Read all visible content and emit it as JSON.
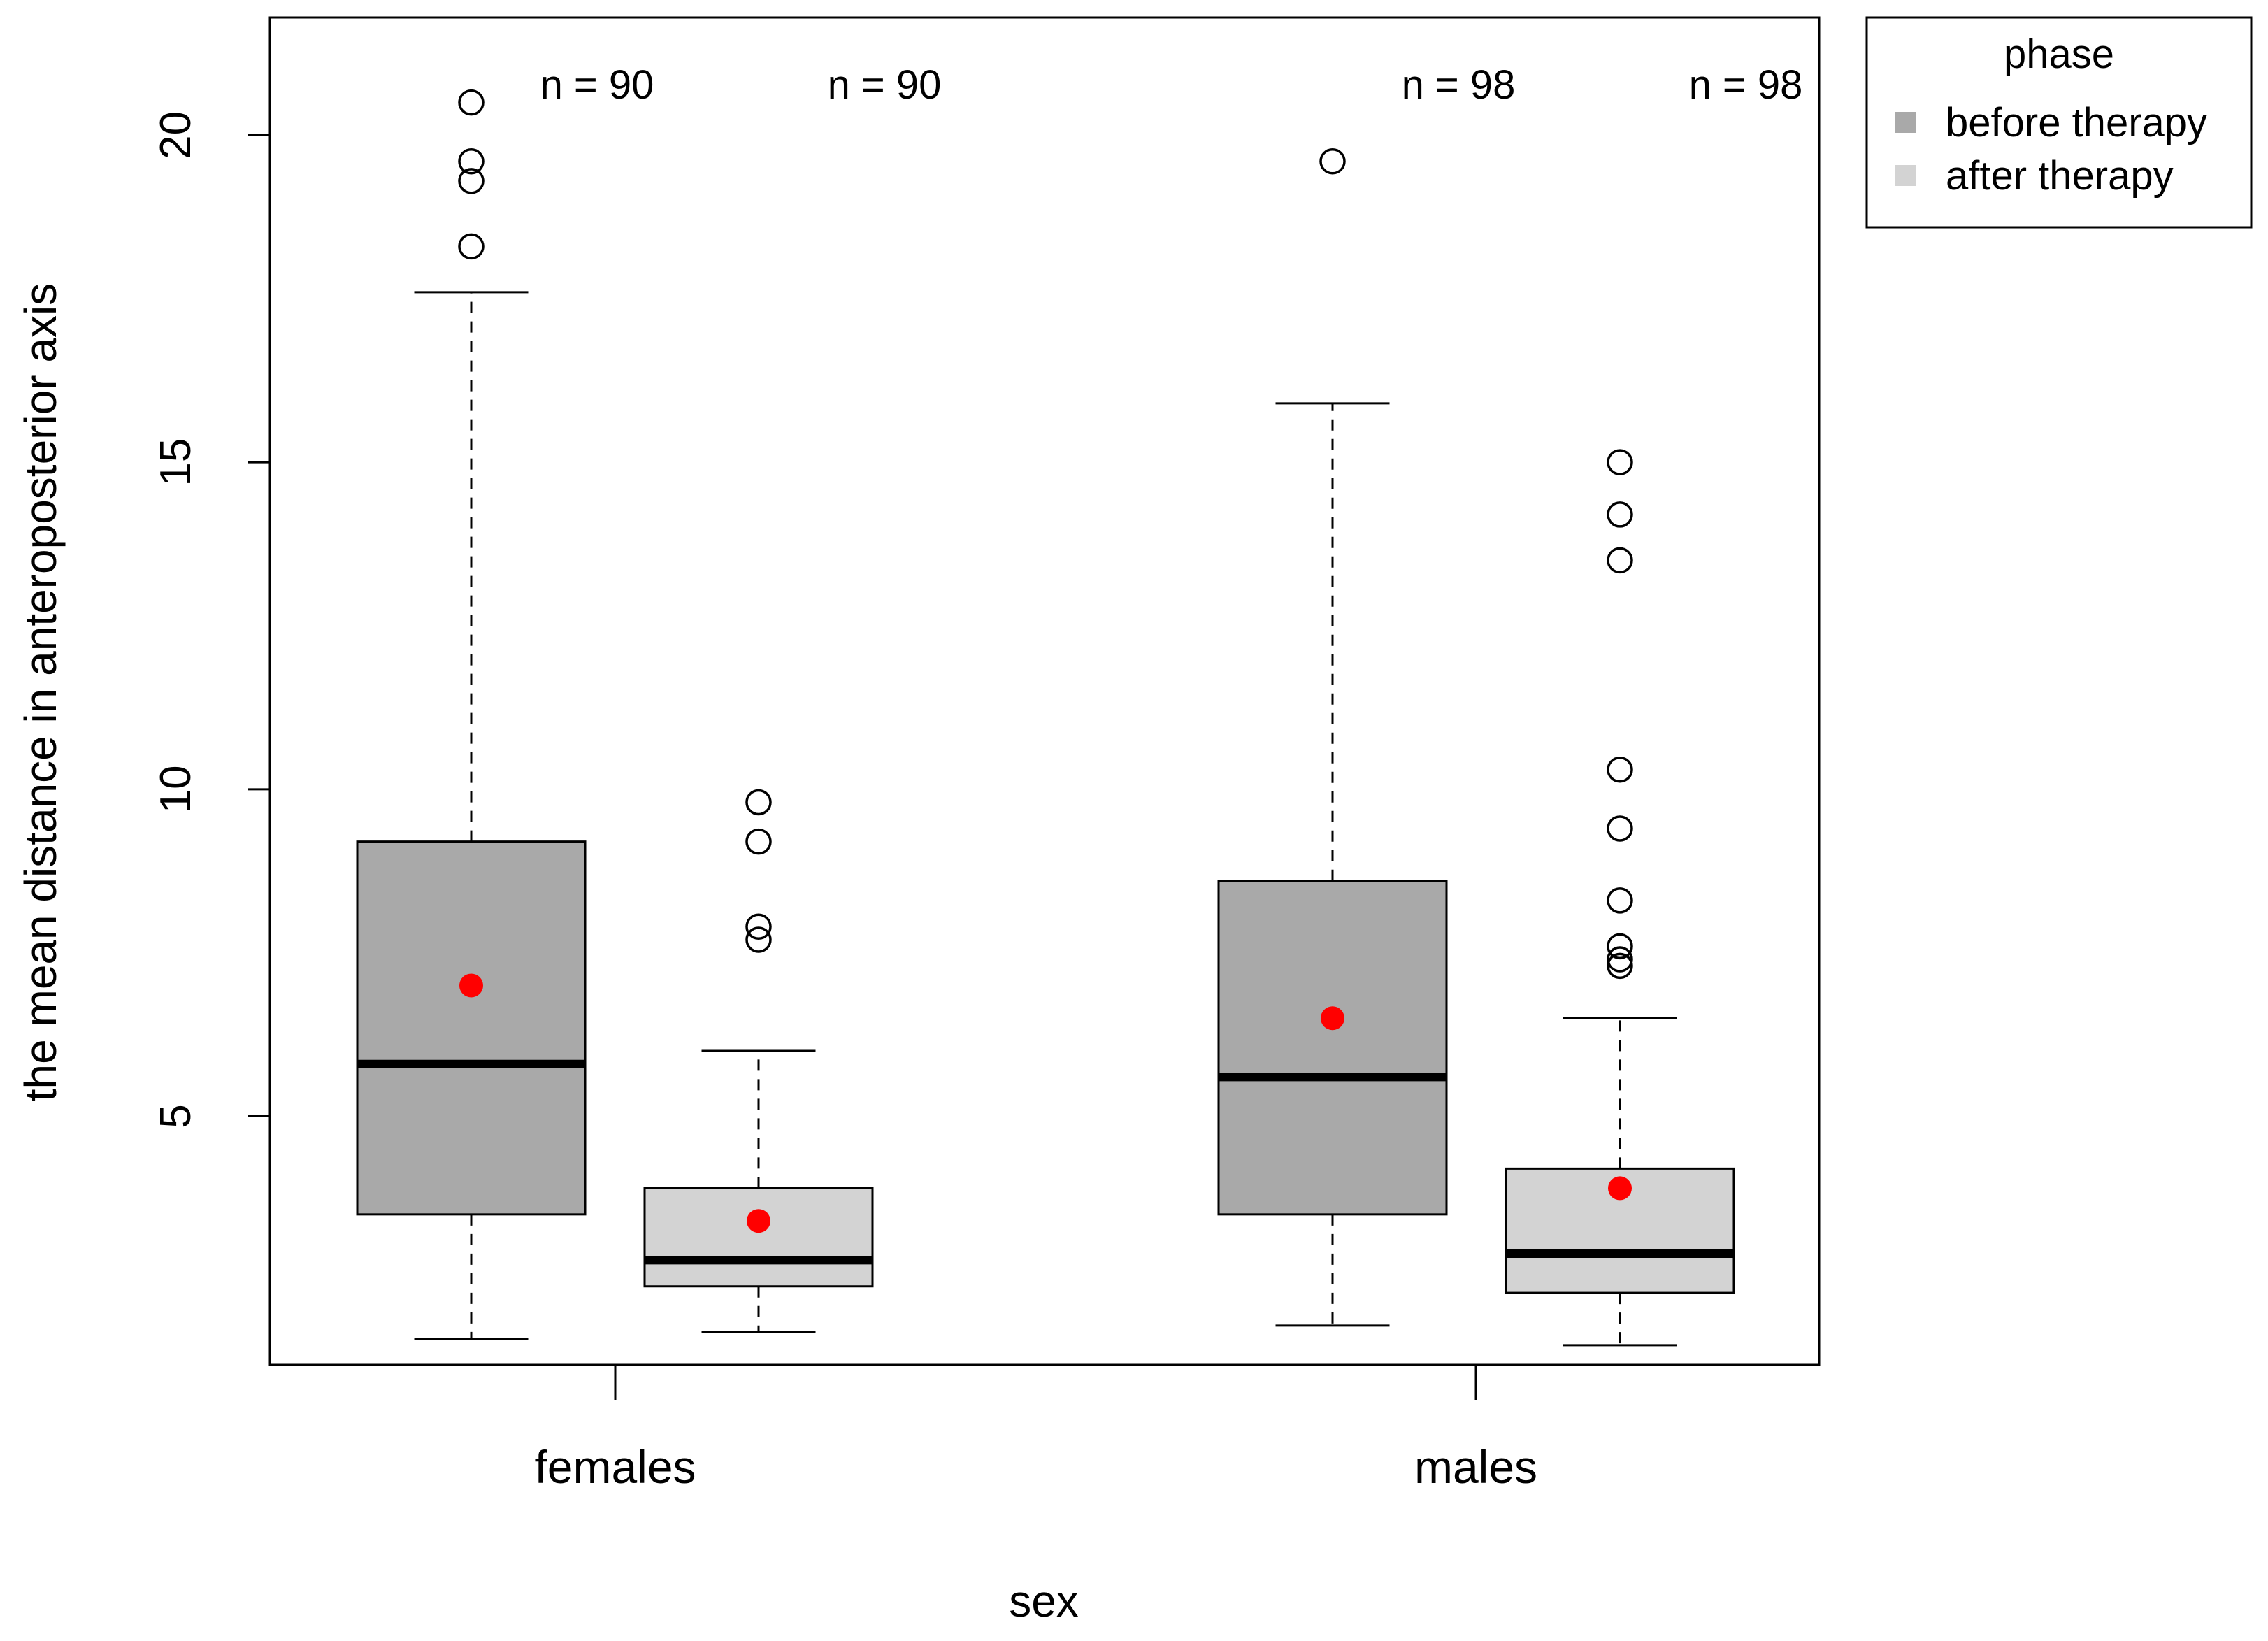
{
  "chart_data": {
    "type": "boxplot",
    "xlabel": "sex",
    "ylabel": "the mean distance in anteroposterior axis",
    "y_range": [
      1.2,
      21.8
    ],
    "y_ticks": [
      5,
      10,
      15,
      20
    ],
    "y_tick_labels": [
      "5",
      "10",
      "15",
      "20"
    ],
    "categories": [
      "females",
      "males"
    ],
    "legend": {
      "title": "phase",
      "position": "right, outside plot",
      "entries": [
        {
          "label": "before therapy",
          "color": "#A9A9A9"
        },
        {
          "label": "after therapy",
          "color": "#D3D3D3"
        }
      ]
    },
    "mean_marker_color": "#FF0000",
    "boxes": [
      {
        "category": "females",
        "phase": "before therapy",
        "color": "#A9A9A9",
        "n_label": "n = 90",
        "whisker_low": 1.6,
        "q1": 3.5,
        "median": 5.8,
        "q3": 9.2,
        "whisker_high": 17.6,
        "mean": 7.0,
        "outliers": [
          18.3,
          19.3,
          19.6,
          20.5
        ]
      },
      {
        "category": "females",
        "phase": "after therapy",
        "color": "#D3D3D3",
        "n_label": "n = 90",
        "whisker_low": 1.7,
        "q1": 2.4,
        "median": 2.8,
        "q3": 3.9,
        "whisker_high": 6.0,
        "mean": 3.4,
        "outliers": [
          7.7,
          7.9,
          9.2,
          9.8
        ]
      },
      {
        "category": "males",
        "phase": "before therapy",
        "color": "#A9A9A9",
        "n_label": "n = 98",
        "whisker_low": 1.8,
        "q1": 3.5,
        "median": 5.6,
        "q3": 8.6,
        "whisker_high": 15.9,
        "mean": 6.5,
        "outliers": [
          19.6
        ]
      },
      {
        "category": "males",
        "phase": "after therapy",
        "color": "#D3D3D3",
        "n_label": "n = 98",
        "whisker_low": 1.5,
        "q1": 2.3,
        "median": 2.9,
        "q3": 4.2,
        "whisker_high": 6.5,
        "mean": 3.9,
        "outliers": [
          7.3,
          7.4,
          7.6,
          8.3,
          9.4,
          10.3,
          13.5,
          14.2,
          15.0
        ]
      }
    ]
  }
}
